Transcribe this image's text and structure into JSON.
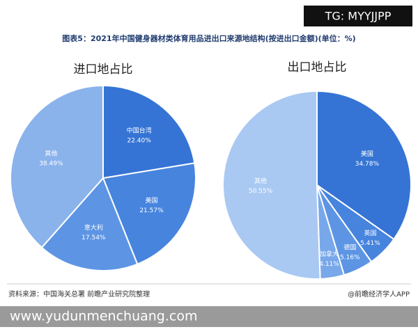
{
  "header": {
    "badge": "TG: MYYJJPP",
    "title": "图表5：2021年中国健身器材类体育用品进出口来源地结构(按进出口金额)(单位：%)"
  },
  "chart_data": [
    {
      "type": "pie",
      "title": "进口地占比",
      "categories": [
        "中国台湾",
        "美国",
        "意大利",
        "其他"
      ],
      "values": [
        22.4,
        21.57,
        17.54,
        38.49
      ],
      "value_labels": [
        "22.40%",
        "21.57%",
        "17.54%",
        "38.49%"
      ],
      "colors": [
        "#3574d4",
        "#4784de",
        "#5d95e4",
        "#8ab3ec"
      ]
    },
    {
      "type": "pie",
      "title": "出口地占比",
      "categories": [
        "美国",
        "英国",
        "德国",
        "加拿大",
        "其他"
      ],
      "values": [
        34.78,
        5.41,
        5.16,
        4.11,
        50.55
      ],
      "value_labels": [
        "34.78%",
        "5.41%",
        "5.16%",
        "4.11%",
        "50.55%"
      ],
      "colors": [
        "#3574d4",
        "#4784de",
        "#5d95e4",
        "#79a8ea",
        "#a9c9f2"
      ]
    }
  ],
  "footer": {
    "source": "资料来源：中国海关总署 前瞻产业研究院整理",
    "app": "@前瞻经济学人APP",
    "url": "www.yudunmenchuang.com"
  }
}
